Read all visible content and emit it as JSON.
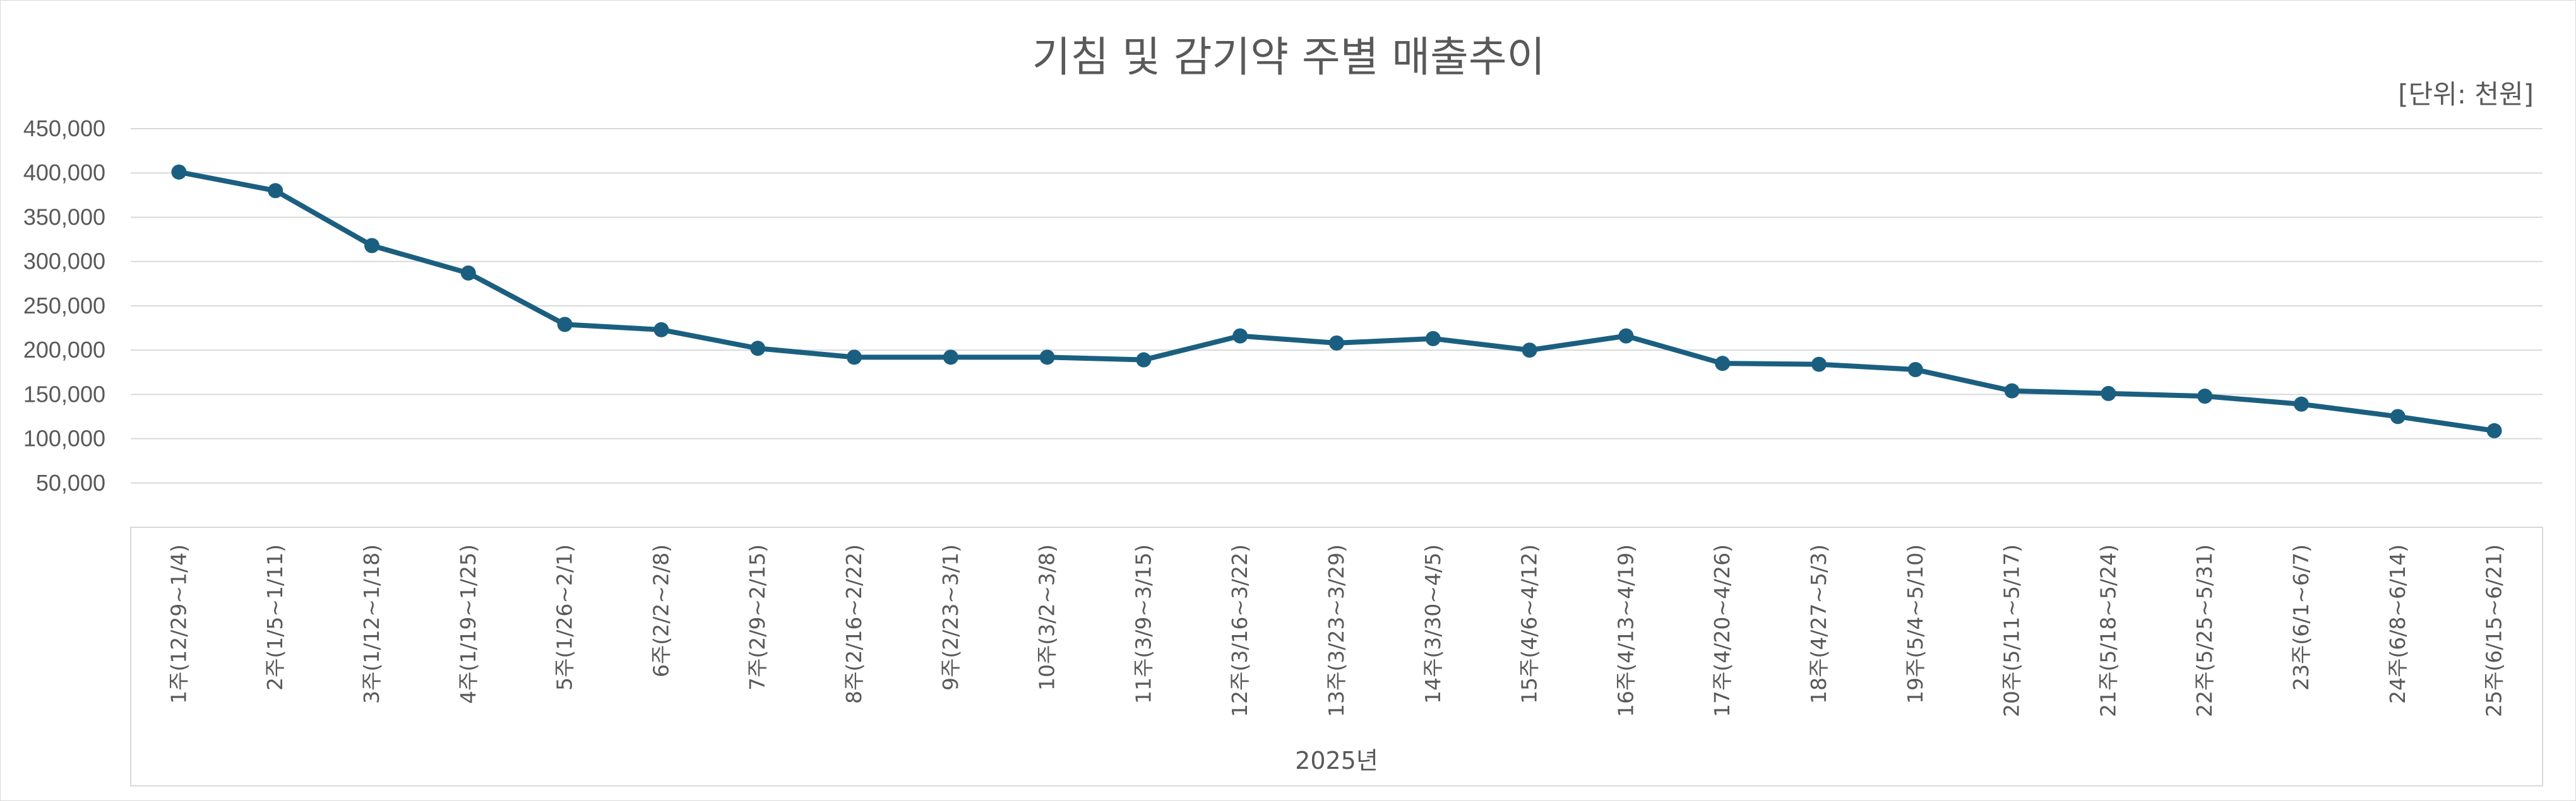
{
  "chart_data": {
    "type": "line",
    "title": "기침 및 감기약 주별 매출추이",
    "unit_note": "[단위: 천원]",
    "xlabel": "2025년",
    "ylabel": "",
    "ylim": [
      0,
      450000
    ],
    "yticks": [
      "450,000",
      "400,000",
      "350,000",
      "300,000",
      "250,000",
      "200,000",
      "150,000",
      "100,000",
      "50,000"
    ],
    "ytick_values": [
      450000,
      400000,
      350000,
      300000,
      250000,
      200000,
      150000,
      100000,
      50000
    ],
    "grid": true,
    "legend": "none",
    "color": "#1b5f80",
    "categories": [
      "1주(12/29~1/4)",
      "2주(1/5~1/11)",
      "3주(1/12~1/18)",
      "4주(1/19~1/25)",
      "5주(1/26~2/1)",
      "6주(2/2~2/8)",
      "7주(2/9~2/15)",
      "8주(2/16~2/22)",
      "9주(2/23~3/1)",
      "10주(3/2~3/8)",
      "11주(3/9~3/15)",
      "12주(3/16~3/22)",
      "13주(3/23~3/29)",
      "14주(3/30~4/5)",
      "15주(4/6~4/12)",
      "16주(4/13~4/19)",
      "17주(4/20~4/26)",
      "18주(4/27~5/3)",
      "19주(5/4~5/10)",
      "20주(5/11~5/17)",
      "21주(5/18~5/24)",
      "22주(5/25~5/31)",
      "23주(6/1~6/7)",
      "24주(6/8~6/14)",
      "25주(6/15~6/21)"
    ],
    "values": [
      401000,
      380000,
      318000,
      287000,
      229000,
      223000,
      202000,
      192000,
      192000,
      192000,
      189000,
      216000,
      208000,
      213000,
      200000,
      216000,
      185000,
      184000,
      178000,
      154000,
      151000,
      148000,
      139000,
      125000,
      109000
    ]
  }
}
